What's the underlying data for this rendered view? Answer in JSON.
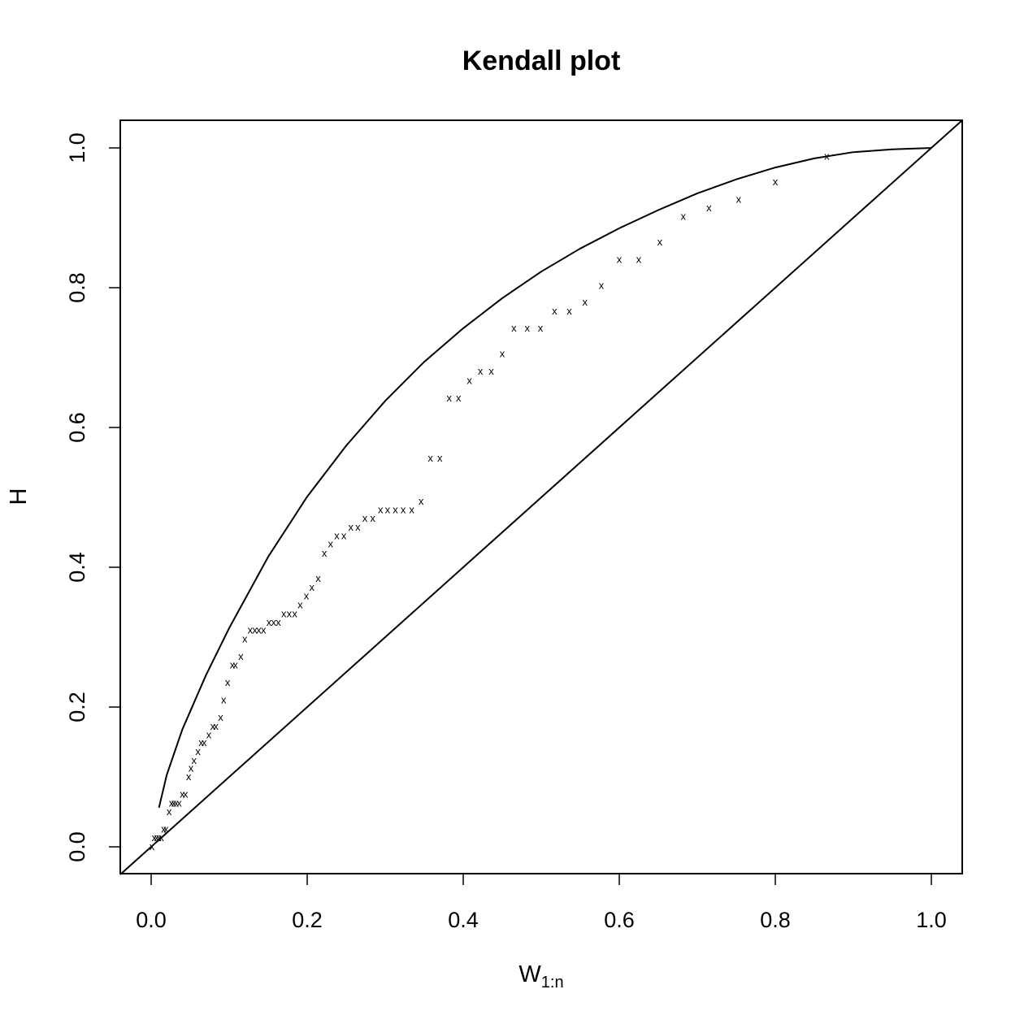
{
  "chart_data": {
    "type": "scatter",
    "title": "Kendall plot",
    "xlabel": "W",
    "xlabel_subscript": "1:n",
    "ylabel": "H",
    "xlim": [
      0.0,
      1.0
    ],
    "ylim": [
      0.0,
      1.0
    ],
    "x_ticks": [
      "0.0",
      "0.2",
      "0.4",
      "0.6",
      "0.8",
      "1.0"
    ],
    "y_ticks": [
      "0.0",
      "0.2",
      "0.4",
      "0.6",
      "0.8",
      "1.0"
    ],
    "grid": false,
    "legend": "none",
    "point_marker": "x",
    "reference_lines": [
      {
        "kind": "diagonal",
        "from": [
          0,
          0
        ],
        "to": [
          1,
          1
        ]
      },
      {
        "kind": "curve",
        "points": [
          [
            0.01,
            0.056
          ],
          [
            0.02,
            0.103
          ],
          [
            0.04,
            0.168
          ],
          [
            0.07,
            0.245
          ],
          [
            0.1,
            0.313
          ],
          [
            0.15,
            0.415
          ],
          [
            0.2,
            0.501
          ],
          [
            0.25,
            0.574
          ],
          [
            0.3,
            0.638
          ],
          [
            0.35,
            0.694
          ],
          [
            0.4,
            0.742
          ],
          [
            0.45,
            0.785
          ],
          [
            0.5,
            0.823
          ],
          [
            0.55,
            0.856
          ],
          [
            0.6,
            0.885
          ],
          [
            0.65,
            0.911
          ],
          [
            0.7,
            0.935
          ],
          [
            0.75,
            0.955
          ],
          [
            0.8,
            0.972
          ],
          [
            0.85,
            0.985
          ],
          [
            0.9,
            0.994
          ],
          [
            0.95,
            0.998
          ],
          [
            1.0,
            1.0
          ]
        ]
      }
    ],
    "series": [
      {
        "points": [
          [
            0.001,
            0.0
          ],
          [
            0.004,
            0.013
          ],
          [
            0.007,
            0.013
          ],
          [
            0.01,
            0.013
          ],
          [
            0.013,
            0.013
          ],
          [
            0.016,
            0.025
          ],
          [
            0.019,
            0.025
          ],
          [
            0.023,
            0.05
          ],
          [
            0.026,
            0.062
          ],
          [
            0.029,
            0.062
          ],
          [
            0.032,
            0.062
          ],
          [
            0.036,
            0.062
          ],
          [
            0.04,
            0.075
          ],
          [
            0.044,
            0.075
          ],
          [
            0.048,
            0.1
          ],
          [
            0.051,
            0.112
          ],
          [
            0.055,
            0.123
          ],
          [
            0.06,
            0.136
          ],
          [
            0.064,
            0.149
          ],
          [
            0.068,
            0.149
          ],
          [
            0.074,
            0.16
          ],
          [
            0.079,
            0.172
          ],
          [
            0.083,
            0.172
          ],
          [
            0.089,
            0.185
          ],
          [
            0.093,
            0.21
          ],
          [
            0.098,
            0.235
          ],
          [
            0.104,
            0.26
          ],
          [
            0.108,
            0.26
          ],
          [
            0.115,
            0.272
          ],
          [
            0.12,
            0.297
          ],
          [
            0.127,
            0.31
          ],
          [
            0.133,
            0.31
          ],
          [
            0.138,
            0.31
          ],
          [
            0.144,
            0.31
          ],
          [
            0.151,
            0.321
          ],
          [
            0.157,
            0.321
          ],
          [
            0.163,
            0.321
          ],
          [
            0.17,
            0.333
          ],
          [
            0.177,
            0.333
          ],
          [
            0.184,
            0.333
          ],
          [
            0.191,
            0.346
          ],
          [
            0.199,
            0.359
          ],
          [
            0.206,
            0.371
          ],
          [
            0.214,
            0.384
          ],
          [
            0.222,
            0.42
          ],
          [
            0.23,
            0.433
          ],
          [
            0.238,
            0.445
          ],
          [
            0.247,
            0.445
          ],
          [
            0.256,
            0.457
          ],
          [
            0.265,
            0.457
          ],
          [
            0.274,
            0.47
          ],
          [
            0.284,
            0.47
          ],
          [
            0.294,
            0.482
          ],
          [
            0.303,
            0.482
          ],
          [
            0.313,
            0.482
          ],
          [
            0.323,
            0.482
          ],
          [
            0.334,
            0.482
          ],
          [
            0.346,
            0.494
          ],
          [
            0.358,
            0.556
          ],
          [
            0.37,
            0.556
          ],
          [
            0.382,
            0.642
          ],
          [
            0.394,
            0.642
          ],
          [
            0.408,
            0.667
          ],
          [
            0.422,
            0.68
          ],
          [
            0.436,
            0.68
          ],
          [
            0.45,
            0.705
          ],
          [
            0.465,
            0.742
          ],
          [
            0.482,
            0.742
          ],
          [
            0.499,
            0.742
          ],
          [
            0.517,
            0.766
          ],
          [
            0.536,
            0.766
          ],
          [
            0.556,
            0.779
          ],
          [
            0.577,
            0.803
          ],
          [
            0.6,
            0.84
          ],
          [
            0.625,
            0.84
          ],
          [
            0.652,
            0.865
          ],
          [
            0.682,
            0.902
          ],
          [
            0.715,
            0.914
          ],
          [
            0.753,
            0.926
          ],
          [
            0.8,
            0.951
          ],
          [
            0.866,
            0.988
          ]
        ]
      }
    ]
  }
}
